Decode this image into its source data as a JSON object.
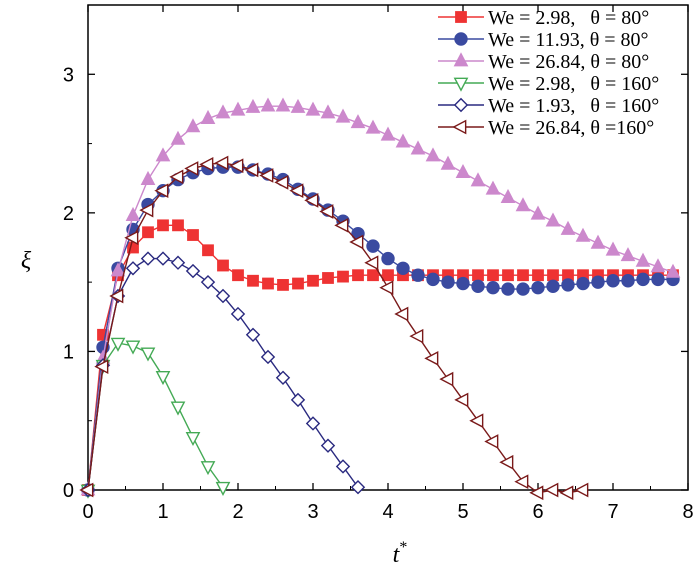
{
  "chart_data": {
    "type": "line",
    "title": "",
    "xlabel": "t*",
    "ylabel": "ξ",
    "xlim": [
      0,
      8
    ],
    "ylim": [
      0,
      3.5
    ],
    "xticks": [
      "0",
      "1",
      "2",
      "3",
      "4",
      "5",
      "6",
      "7",
      "8"
    ],
    "yticks": [
      "0",
      "1",
      "2",
      "3"
    ],
    "grid": false,
    "legend_position": "top-right",
    "series": [
      {
        "name": "We = 2.98,   θ = 80°",
        "color": "#ee3333",
        "marker": "square-filled",
        "x": [
          0,
          0.2,
          0.4,
          0.6,
          0.8,
          1.0,
          1.2,
          1.4,
          1.6,
          1.8,
          2.0,
          2.2,
          2.4,
          2.6,
          2.8,
          3.0,
          3.2,
          3.4,
          3.6,
          3.8,
          4.0,
          4.2,
          4.4,
          4.6,
          4.8,
          5.0,
          5.2,
          5.4,
          5.6,
          5.8,
          6.0,
          6.2,
          6.4,
          6.6,
          6.8,
          7.0,
          7.2,
          7.4,
          7.6,
          7.8
        ],
        "y": [
          0,
          1.12,
          1.55,
          1.75,
          1.86,
          1.91,
          1.91,
          1.84,
          1.73,
          1.62,
          1.55,
          1.51,
          1.49,
          1.48,
          1.49,
          1.51,
          1.53,
          1.54,
          1.55,
          1.55,
          1.55,
          1.55,
          1.55,
          1.55,
          1.55,
          1.55,
          1.55,
          1.55,
          1.55,
          1.55,
          1.55,
          1.55,
          1.55,
          1.55,
          1.55,
          1.55,
          1.55,
          1.55,
          1.55,
          1.55
        ]
      },
      {
        "name": "We = 11.93, θ = 80°",
        "color": "#3a4aa0",
        "marker": "circle-filled",
        "x": [
          0,
          0.2,
          0.4,
          0.6,
          0.8,
          1.0,
          1.2,
          1.4,
          1.6,
          1.8,
          2.0,
          2.2,
          2.4,
          2.6,
          2.8,
          3.0,
          3.2,
          3.4,
          3.6,
          3.8,
          4.0,
          4.2,
          4.4,
          4.6,
          4.8,
          5.0,
          5.2,
          5.4,
          5.6,
          5.8,
          6.0,
          6.2,
          6.4,
          6.6,
          6.8,
          7.0,
          7.2,
          7.4,
          7.6,
          7.8
        ],
        "y": [
          0,
          1.03,
          1.6,
          1.88,
          2.06,
          2.16,
          2.24,
          2.29,
          2.32,
          2.33,
          2.33,
          2.31,
          2.28,
          2.24,
          2.17,
          2.1,
          2.02,
          1.94,
          1.85,
          1.76,
          1.67,
          1.6,
          1.55,
          1.52,
          1.5,
          1.49,
          1.47,
          1.46,
          1.45,
          1.45,
          1.46,
          1.47,
          1.48,
          1.49,
          1.5,
          1.51,
          1.51,
          1.52,
          1.52,
          1.52
        ]
      },
      {
        "name": "We = 26.84, θ = 80°",
        "color": "#cc88cc",
        "marker": "triangle-filled",
        "x": [
          0,
          0.2,
          0.4,
          0.6,
          0.8,
          1.0,
          1.2,
          1.4,
          1.6,
          1.8,
          2.0,
          2.2,
          2.4,
          2.6,
          2.8,
          3.0,
          3.2,
          3.4,
          3.6,
          3.8,
          4.0,
          4.2,
          4.4,
          4.6,
          4.8,
          5.0,
          5.2,
          5.4,
          5.6,
          5.8,
          6.0,
          6.2,
          6.4,
          6.6,
          6.8,
          7.0,
          7.2,
          7.4,
          7.6,
          7.8
        ],
        "y": [
          0,
          0.95,
          1.58,
          1.98,
          2.24,
          2.41,
          2.53,
          2.62,
          2.68,
          2.72,
          2.74,
          2.76,
          2.77,
          2.77,
          2.76,
          2.74,
          2.72,
          2.69,
          2.65,
          2.61,
          2.56,
          2.51,
          2.46,
          2.41,
          2.35,
          2.29,
          2.23,
          2.17,
          2.11,
          2.05,
          1.99,
          1.94,
          1.88,
          1.83,
          1.78,
          1.73,
          1.69,
          1.65,
          1.61,
          1.57
        ]
      },
      {
        "name": "We = 2.98,   θ = 160°",
        "color": "#44aa55",
        "marker": "triangle-down-open",
        "x": [
          0,
          0.2,
          0.4,
          0.6,
          0.8,
          1.0,
          1.2,
          1.4,
          1.6,
          1.8
        ],
        "y": [
          0,
          0.9,
          1.06,
          1.04,
          0.99,
          0.82,
          0.6,
          0.38,
          0.17,
          0.02
        ]
      },
      {
        "name": "We = 1.93,   θ = 160°",
        "color": "#2a2a80",
        "marker": "diamond-open",
        "x": [
          0,
          0.2,
          0.4,
          0.6,
          0.8,
          1.0,
          1.2,
          1.4,
          1.6,
          1.8,
          2.0,
          2.2,
          2.4,
          2.6,
          2.8,
          3.0,
          3.2,
          3.4,
          3.6
        ],
        "y": [
          0,
          0.9,
          1.4,
          1.6,
          1.67,
          1.67,
          1.64,
          1.58,
          1.5,
          1.4,
          1.27,
          1.12,
          0.96,
          0.81,
          0.65,
          0.48,
          0.32,
          0.17,
          0.02
        ]
      },
      {
        "name": "We = 26.84, θ =160°",
        "color": "#7a1a1a",
        "marker": "triangle-left-open",
        "x": [
          0,
          0.2,
          0.4,
          0.6,
          0.8,
          1.0,
          1.2,
          1.4,
          1.6,
          1.8,
          2.0,
          2.2,
          2.4,
          2.6,
          2.8,
          3.0,
          3.2,
          3.4,
          3.6,
          3.8,
          4.0,
          4.2,
          4.4,
          4.6,
          4.8,
          5.0,
          5.2,
          5.4,
          5.6,
          5.8,
          6.0,
          6.2,
          6.4,
          6.6
        ],
        "y": [
          0,
          0.89,
          1.4,
          1.82,
          2.02,
          2.16,
          2.26,
          2.32,
          2.35,
          2.36,
          2.34,
          2.31,
          2.27,
          2.22,
          2.16,
          2.09,
          2.01,
          1.91,
          1.79,
          1.64,
          1.46,
          1.27,
          1.11,
          0.95,
          0.8,
          0.65,
          0.5,
          0.35,
          0.2,
          0.06,
          -0.02,
          0.0,
          -0.02,
          0.0
        ]
      }
    ]
  }
}
